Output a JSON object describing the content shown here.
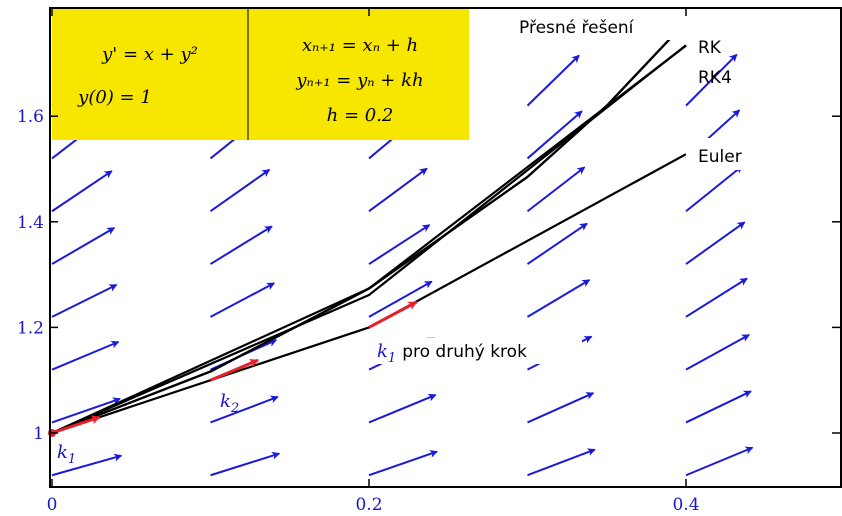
{
  "chart_data": {
    "type": "line",
    "title": "",
    "xlabel": "",
    "ylabel": "",
    "xlim": [
      0,
      0.5
    ],
    "ylim": [
      0.9,
      1.8
    ],
    "xticks": [
      0,
      0.2,
      0.4
    ],
    "xtick_labels": [
      "0",
      "0.2",
      "0.4"
    ],
    "yticks": [
      1,
      1.2,
      1.4,
      1.6
    ],
    "ytick_labels": [
      "1",
      "1.2",
      "1.4",
      "1.6"
    ],
    "grid": false,
    "direction_field": {
      "equation": "y' = x + y^2",
      "color": "#1a1adc"
    },
    "series": [
      {
        "name": "Přesné řešení",
        "x": [
          0,
          0.1,
          0.2,
          0.3,
          0.35,
          0.4
        ],
        "y": [
          1,
          1.1165,
          1.2736,
          1.485,
          1.6198,
          1.7788
        ]
      },
      {
        "name": "RK",
        "x": [
          0,
          0.2,
          0.4
        ],
        "y": [
          1,
          1.2613,
          1.7344
        ]
      },
      {
        "name": "RK4",
        "x": [
          0,
          0.2,
          0.4
        ],
        "y": [
          1,
          1.2736,
          1.7337
        ]
      },
      {
        "name": "Euler",
        "x": [
          0,
          0.2,
          0.4
        ],
        "y": [
          1,
          1.2,
          1.528
        ]
      }
    ],
    "slope_arrows": [
      {
        "label": "k_1",
        "x0": 0,
        "y0": 1,
        "x1": 0.03,
        "y1": 1.03,
        "label_x": 0.0,
        "label_y": 0.95
      },
      {
        "label": "k_2",
        "x0": 0.1,
        "y0": 1.1,
        "x1": 0.13,
        "y1": 1.138,
        "label_x": 0.105,
        "label_y": 1.055
      },
      {
        "label": "k_1 pro druhý krok",
        "x0": 0.2,
        "y0": 1.2,
        "x1": 0.23,
        "y1": 1.248,
        "label_x": 0.2,
        "label_y": 1.155
      }
    ],
    "annotations": [
      {
        "text": "Přesné řešení",
        "x": 0.385,
        "y": 1.775
      },
      {
        "text": "RK",
        "x": 0.405,
        "y": 1.745
      },
      {
        "text": "RK4",
        "x": 0.405,
        "y": 1.685
      },
      {
        "text": "Euler",
        "x": 0.405,
        "y": 1.52
      }
    ],
    "info_box": {
      "color": "#f7e600",
      "left": [
        "y' = x + y²",
        "y(0) = 1"
      ],
      "right": [
        "xₙ₊₁ = xₙ + h",
        "yₙ₊₁ = yₙ + kh",
        "h = 0.2"
      ]
    }
  }
}
